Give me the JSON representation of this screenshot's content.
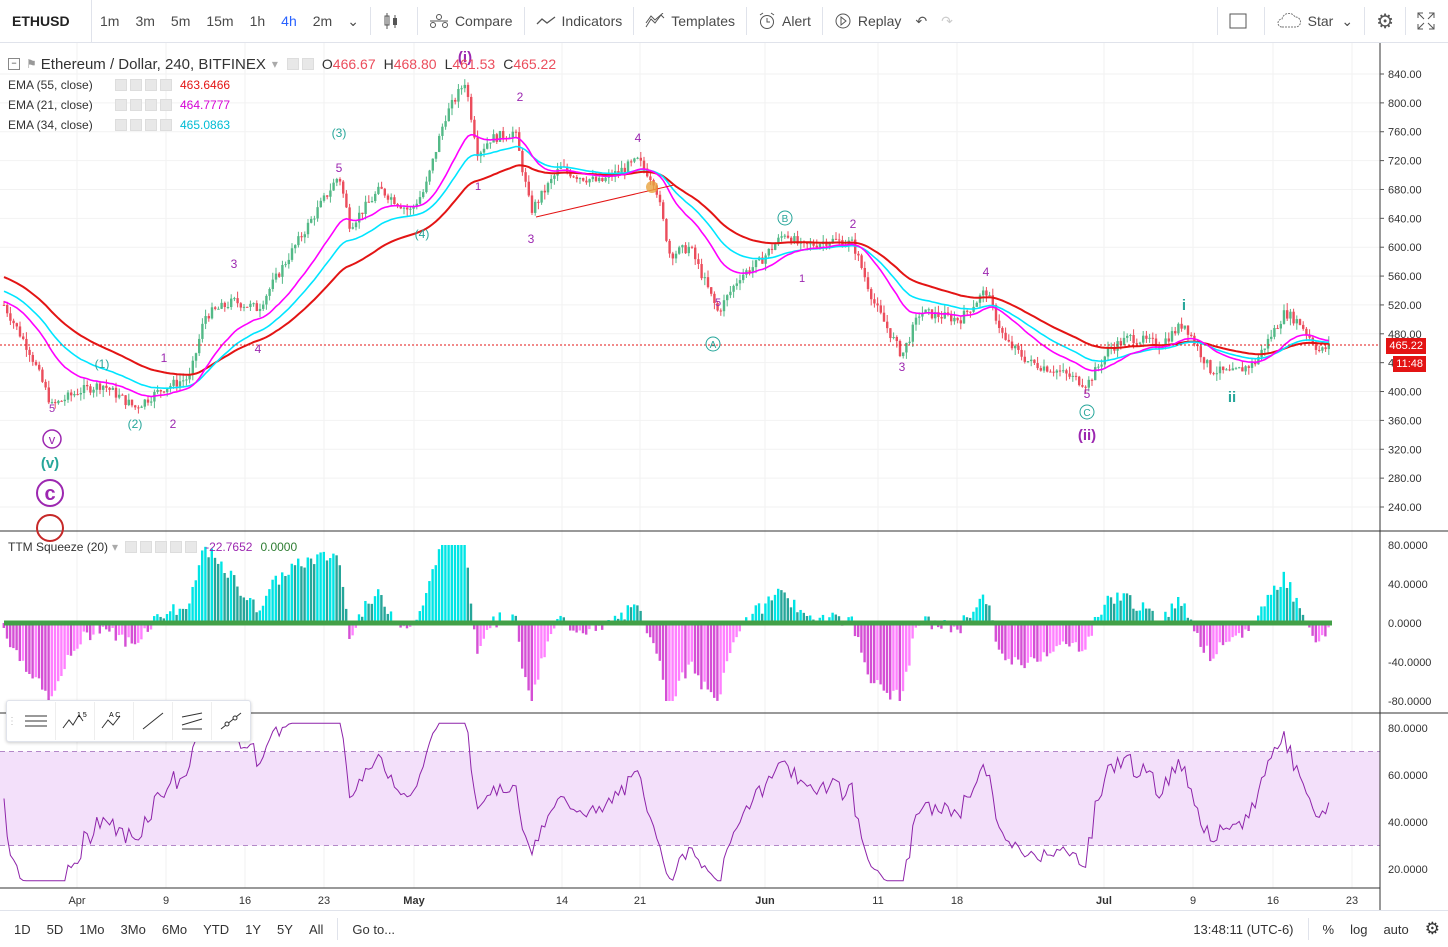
{
  "toolbar": {
    "symbol": "ETHUSD",
    "intervals": [
      "1m",
      "3m",
      "5m",
      "15m",
      "1h",
      "4h",
      "2m"
    ],
    "active_interval": "4h",
    "compare": "Compare",
    "indicators": "Indicators",
    "templates": "Templates",
    "alert": "Alert",
    "replay": "Replay",
    "star": "Star"
  },
  "legend": {
    "title": "Ethereum / Dollar, 240, BITFINEX",
    "o_label": "O",
    "o": "466.67",
    "h_label": "H",
    "h": "468.80",
    "l_label": "L",
    "l": "461.53",
    "c_label": "C",
    "c": "465.22",
    "ema55_label": "EMA (55, close)",
    "ema55": "463.6466",
    "ema21_label": "EMA (21, close)",
    "ema21": "464.7777",
    "ema34_label": "EMA (34, close)",
    "ema34": "465.0863",
    "ttm_label": "TTM Squeeze (20)",
    "ttm_val1": "-22.7652",
    "ttm_val2": "0.0000"
  },
  "price_axis": [
    "840.00",
    "800.00",
    "760.00",
    "720.00",
    "680.00",
    "640.00",
    "600.00",
    "560.00",
    "520.00",
    "480.00",
    "440.00",
    "400.00",
    "360.00",
    "320.00",
    "280.00",
    "240.00"
  ],
  "ttm_axis": [
    "80.0000",
    "40.0000",
    "0.0000",
    "-40.0000",
    "-80.0000"
  ],
  "rsi_axis": [
    "80.0000",
    "60.0000",
    "40.0000",
    "20.0000"
  ],
  "last_price": "465.22",
  "countdown": "11:48",
  "time_axis": [
    {
      "label": "Apr",
      "bold": false
    },
    {
      "label": "9",
      "bold": false
    },
    {
      "label": "16",
      "bold": false
    },
    {
      "label": "23",
      "bold": false
    },
    {
      "label": "May",
      "bold": true
    },
    {
      "label": "14",
      "bold": false
    },
    {
      "label": "21",
      "bold": false
    },
    {
      "label": "Jun",
      "bold": true
    },
    {
      "label": "11",
      "bold": false
    },
    {
      "label": "18",
      "bold": false
    },
    {
      "label": "Jul",
      "bold": true
    },
    {
      "label": "9",
      "bold": false
    },
    {
      "label": "16",
      "bold": false
    },
    {
      "label": "23",
      "bold": false
    }
  ],
  "wave_labels": {
    "i_paren": "(i)",
    "ii_paren": "(ii)",
    "v_paren": "(v)",
    "v_circle": "v",
    "c_circle": "c",
    "three_paren": "(3)",
    "four_paren": "(4)",
    "one_paren": "(1)",
    "two_paren": "(2)",
    "A_circle": "A",
    "B_circle": "B",
    "C_circle": "C",
    "roman_i": "i",
    "roman_ii": "ii",
    "n1": "1",
    "n2": "2",
    "n3": "3",
    "n4": "4",
    "n5": "5"
  },
  "bottom": {
    "ranges": [
      "1D",
      "5D",
      "1Mo",
      "3Mo",
      "6Mo",
      "YTD",
      "1Y",
      "5Y",
      "All"
    ],
    "goto": "Go to...",
    "time": "13:48:11 (UTC-6)",
    "percent": "%",
    "log": "log",
    "auto": "auto"
  },
  "colors": {
    "up": "#53b987",
    "down": "#eb4d5c",
    "ema55": "#e31414",
    "ema21": "#ff00ff",
    "ema34": "#00e5ff",
    "wave_purple": "#9c27b0",
    "wave_teal": "#26a69a",
    "rsi_line": "#8e24aa",
    "rsi_band": "#f3e0fa"
  }
}
